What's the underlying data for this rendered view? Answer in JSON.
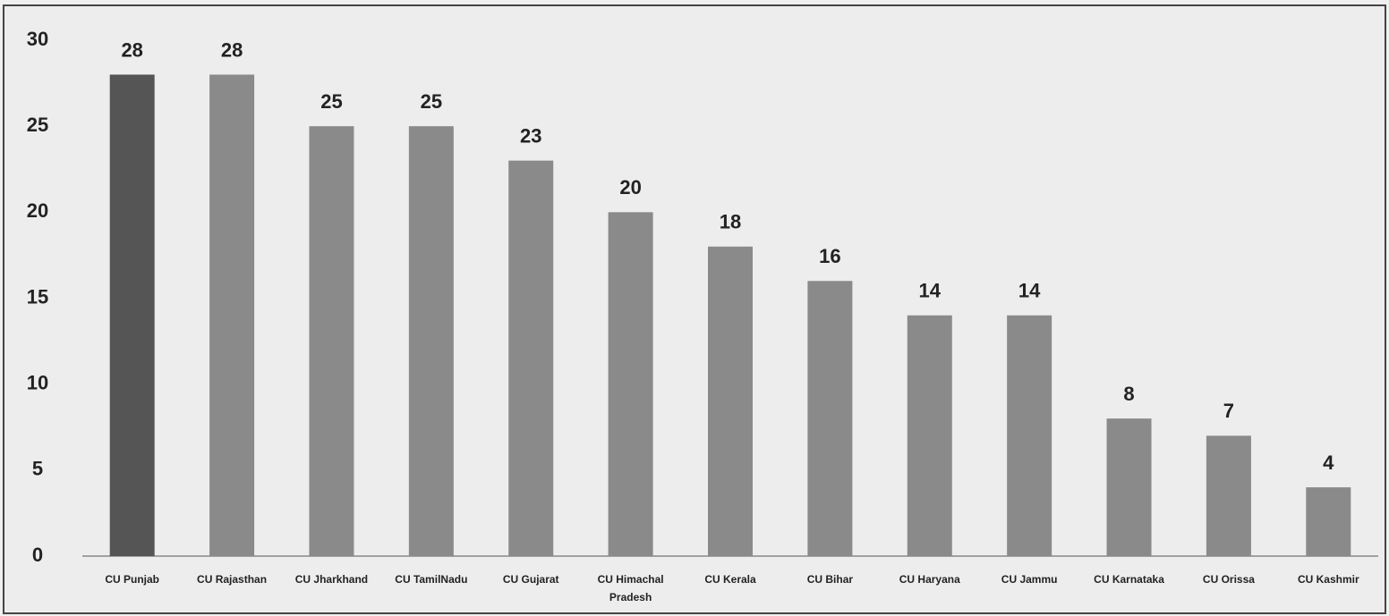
{
  "chart_data": {
    "type": "bar",
    "categories": [
      "CU Punjab",
      "CU Rajasthan",
      "CU Jharkhand",
      "CU TamilNadu",
      "CU Gujarat",
      "CU Himachal Pradesh",
      "CU Kerala",
      "CU Bihar",
      "CU Haryana",
      "CU Jammu",
      "CU Karnataka",
      "CU Orissa",
      "CU Kashmir"
    ],
    "values": [
      28,
      28,
      25,
      25,
      23,
      20,
      18,
      16,
      14,
      14,
      8,
      7,
      4
    ],
    "colors": [
      "#555555",
      "#8a8a8a",
      "#8a8a8a",
      "#8a8a8a",
      "#8a8a8a",
      "#8a8a8a",
      "#8a8a8a",
      "#8a8a8a",
      "#8a8a8a",
      "#8a8a8a",
      "#8a8a8a",
      "#8a8a8a",
      "#8a8a8a"
    ],
    "ylim": [
      0,
      30
    ],
    "yticks": [
      0,
      5,
      10,
      15,
      20,
      25,
      30
    ],
    "grid": false
  }
}
